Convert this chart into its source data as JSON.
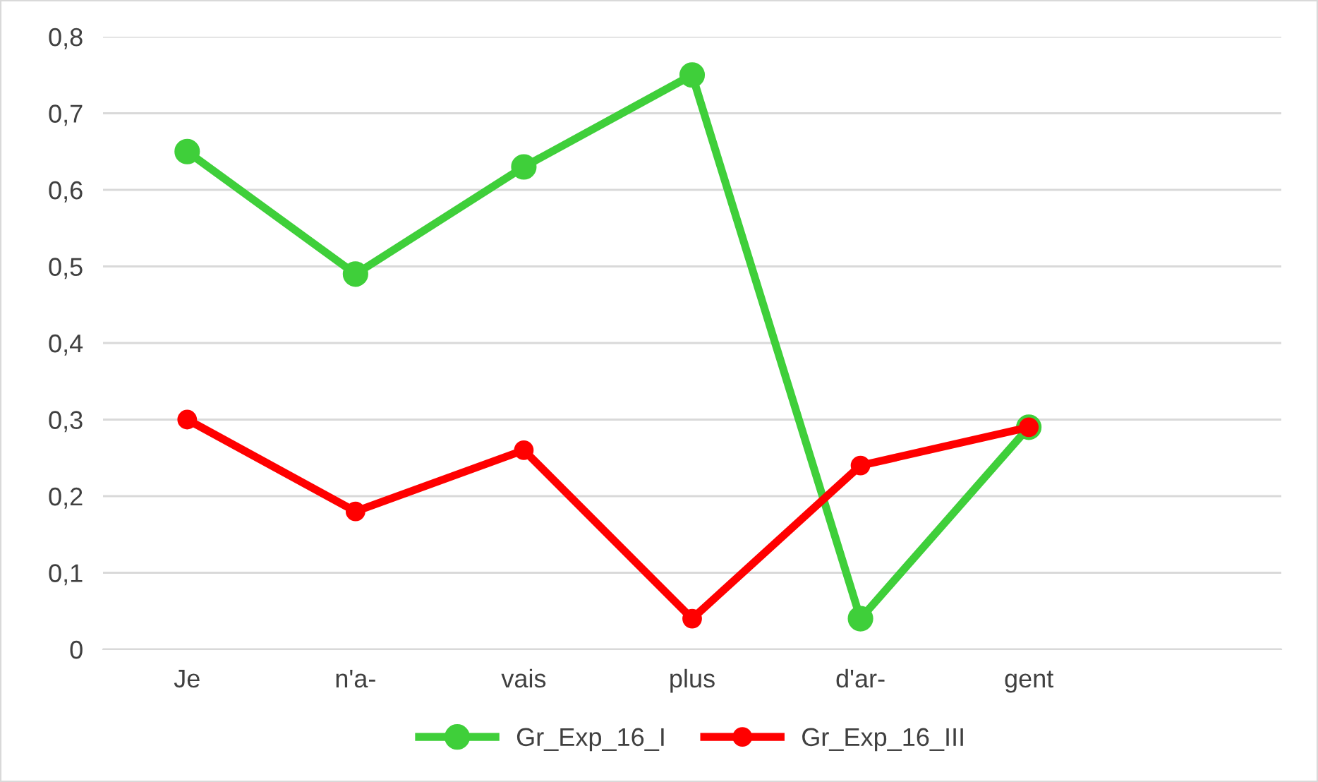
{
  "chart_data": {
    "type": "line",
    "categories": [
      "Je",
      "n'a-",
      "vais",
      "plus",
      "d'ar-",
      "gent",
      null
    ],
    "series": [
      {
        "name": "Gr_Exp_16_I",
        "color": "#3fcf3a",
        "values": [
          0.65,
          0.49,
          0.63,
          0.75,
          0.04,
          0.29,
          null
        ]
      },
      {
        "name": "Gr_Exp_16_III",
        "color": "#ff0000",
        "values": [
          0.3,
          0.18,
          0.26,
          0.04,
          0.24,
          0.29,
          null
        ]
      }
    ],
    "ylim": [
      0,
      0.8
    ],
    "yticks": [
      {
        "value": 0,
        "label": "0"
      },
      {
        "value": 0.1,
        "label": "0,1"
      },
      {
        "value": 0.2,
        "label": "0,2"
      },
      {
        "value": 0.3,
        "label": "0,3"
      },
      {
        "value": 0.4,
        "label": "0,4"
      },
      {
        "value": 0.5,
        "label": "0,5"
      },
      {
        "value": 0.6,
        "label": "0,6"
      },
      {
        "value": 0.7,
        "label": "0,7"
      },
      {
        "value": 0.8,
        "label": "0,8"
      }
    ],
    "grid": "y",
    "legend": "bottom",
    "marker": "circle",
    "line_style": "solid"
  }
}
